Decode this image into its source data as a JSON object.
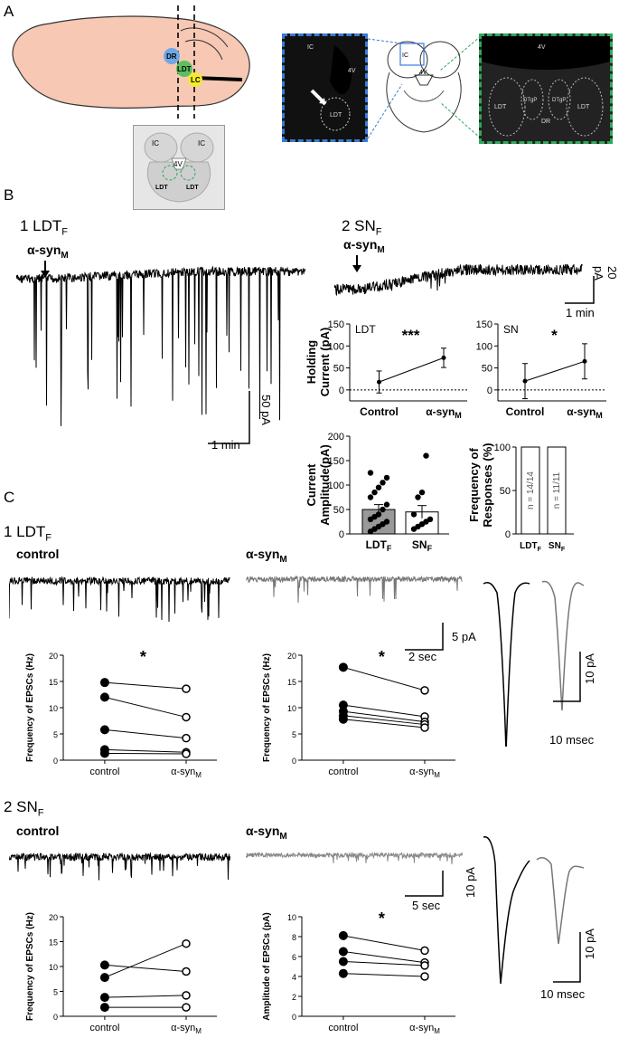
{
  "panels": {
    "a": "A",
    "b": "B",
    "c": "C"
  },
  "panel_a": {
    "brain_labels": [
      "DR",
      "LDT",
      "LC"
    ],
    "slice_labels": {
      "ic_left": "IC",
      "ic_right": "IC",
      "v4": "4V",
      "ldt_left": "LDT",
      "ldt_right": "LDT"
    },
    "micro_left_labels": {
      "ic": "IC",
      "v4": "4V",
      "ldt": "LDT"
    },
    "atlas_labels": {
      "ic": "IC",
      "v4": "4V"
    },
    "micro_right_labels": {
      "v4": "4V",
      "ldt_left": "LDT",
      "ldt_right": "LDT",
      "dtgp_left": "DTgP",
      "dtgp_right": "DTgP",
      "dr": "DR"
    }
  },
  "panel_b": {
    "trace1_title": "1 LDT",
    "trace1_sub": "F",
    "trace2_title": "2 SN",
    "trace2_sub": "F",
    "drug": "α-syn",
    "drug_sub": "M",
    "scale1_y": "50 pA",
    "scale1_x": "1 min",
    "scale2_y": "20 pA",
    "scale2_x": "1 min"
  },
  "panel_c": {
    "row1_title": "1 LDT",
    "row1_sub": "F",
    "row2_title": "2 SN",
    "row2_sub": "F",
    "control_label": "control",
    "drug_label": "α-syn",
    "drug_sub": "M",
    "scale_row1_y": "5 pA",
    "scale_row1_x": "2 sec",
    "scale_row2_y": "10 pA",
    "scale_row2_x": "5 sec",
    "wave1_y": "10 pA",
    "wave1_x": "10 msec",
    "wave2_y": "10 pA",
    "wave2_x": "10 msec"
  },
  "chart_data": [
    {
      "type": "line",
      "panel": "B",
      "title": "LDT",
      "ylabel": "Holding Current (pA)",
      "categories": [
        "Control",
        "α-synM"
      ],
      "values": [
        18,
        73
      ],
      "errors": [
        25,
        22
      ],
      "ylim": [
        -25,
        150
      ],
      "yticks": [
        0,
        50,
        100,
        150
      ],
      "significance": "***"
    },
    {
      "type": "line",
      "panel": "B",
      "title": "SN",
      "ylabel": "Holding Current (pA)",
      "categories": [
        "Control",
        "α-synM"
      ],
      "values": [
        20,
        65
      ],
      "errors": [
        40,
        40
      ],
      "ylim": [
        -25,
        150
      ],
      "yticks": [
        0,
        50,
        100,
        150
      ],
      "significance": "*"
    },
    {
      "type": "bar",
      "panel": "B",
      "ylabel": "Current Amplitude(pA)",
      "categories": [
        "LDTF",
        "SNF"
      ],
      "values": [
        50,
        45
      ],
      "errors": [
        10,
        13
      ],
      "ylim": [
        0,
        200
      ],
      "yticks": [
        0,
        50,
        100,
        150,
        200
      ],
      "points": [
        [
          5,
          10,
          15,
          20,
          25,
          30,
          35,
          40,
          50,
          60,
          75,
          85,
          95,
          105,
          115,
          125
        ],
        [
          10,
          15,
          20,
          25,
          30,
          40,
          75,
          85,
          160
        ]
      ]
    },
    {
      "type": "bar",
      "panel": "B",
      "ylabel": "Frequency of Responses (%)",
      "categories": [
        "LDTF",
        "SNF"
      ],
      "values": [
        100,
        100
      ],
      "bar_labels": [
        "n = 14/14",
        "n = 11/11"
      ],
      "ylim": [
        0,
        100
      ],
      "yticks": [
        0,
        50,
        100
      ]
    },
    {
      "type": "line",
      "panel": "C1",
      "ylabel": "Frequency of EPSCs (Hz)",
      "categories": [
        "control",
        "α-synM"
      ],
      "series": [
        {
          "values": [
            14.8,
            13.6
          ]
        },
        {
          "values": [
            12.0,
            8.2
          ]
        },
        {
          "values": [
            5.8,
            4.2
          ]
        },
        {
          "values": [
            2.0,
            1.5
          ]
        },
        {
          "values": [
            1.3,
            1.2
          ]
        }
      ],
      "ylim": [
        0,
        20
      ],
      "yticks": [
        0,
        5,
        10,
        15,
        20
      ],
      "significance": "*"
    },
    {
      "type": "line",
      "panel": "C1",
      "ylabel": "Frequency of EPSCs (Hz)",
      "categories": [
        "control",
        "α-synM"
      ],
      "series": [
        {
          "values": [
            17.7,
            13.3
          ]
        },
        {
          "values": [
            10.5,
            8.3
          ]
        },
        {
          "values": [
            9.3,
            7.3
          ]
        },
        {
          "values": [
            8.5,
            6.8
          ]
        },
        {
          "values": [
            7.8,
            6.2
          ]
        }
      ],
      "ylim": [
        0,
        20
      ],
      "yticks": [
        0,
        5,
        10,
        15,
        20
      ],
      "significance": "*"
    },
    {
      "type": "line",
      "panel": "C2",
      "ylabel": "Frequency of EPSCs (Hz)",
      "categories": [
        "control",
        "α-synM"
      ],
      "series": [
        {
          "values": [
            10.3,
            9.0
          ]
        },
        {
          "values": [
            7.8,
            14.6
          ]
        },
        {
          "values": [
            3.8,
            4.2
          ]
        },
        {
          "values": [
            1.8,
            1.8
          ]
        }
      ],
      "ylim": [
        0,
        20
      ],
      "yticks": [
        0,
        5,
        10,
        15,
        20
      ]
    },
    {
      "type": "line",
      "panel": "C2",
      "ylabel": "Amplitude of EPSCs (pA)",
      "categories": [
        "control",
        "α-synM"
      ],
      "series": [
        {
          "values": [
            8.1,
            6.6
          ]
        },
        {
          "values": [
            6.5,
            5.4
          ]
        },
        {
          "values": [
            5.5,
            5.1
          ]
        },
        {
          "values": [
            4.3,
            4.0
          ]
        }
      ],
      "ylim": [
        0,
        10
      ],
      "yticks": [
        0,
        2,
        4,
        6,
        8,
        10
      ],
      "significance": "*"
    }
  ]
}
